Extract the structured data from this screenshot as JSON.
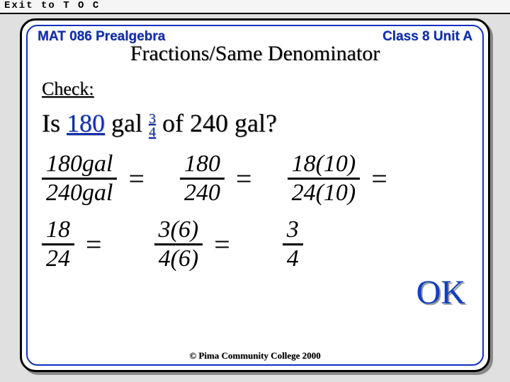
{
  "exit_label": "Exit to T O C",
  "header": {
    "left": "MAT 086  Prealgebra",
    "right": "Class 8  Unit A"
  },
  "title": "Fractions/Same Denominator",
  "check_label": "Check:",
  "question": {
    "pre": "Is ",
    "val": "180",
    "mid1": " gal ",
    "frac_num": "3",
    "frac_den": "4",
    "mid2": " of 240 gal?"
  },
  "row1": {
    "f1_num": "180gal",
    "f1_den": "240gal",
    "f2_num": "180",
    "f2_den": "240",
    "f3_num": "18(10)",
    "f3_den": "24(10)"
  },
  "row2": {
    "f1_num": "18",
    "f1_den": "24",
    "f2_num": "3(6)",
    "f2_den": "4(6)",
    "f3_num": "3",
    "f3_den": "4"
  },
  "ok": "OK",
  "footer": "© Pima Community College 2000",
  "colors": {
    "accent": "#1030b0",
    "card_border_inner": "#1030c0",
    "shadow": "#888888",
    "bg": "#e0e0e0"
  }
}
